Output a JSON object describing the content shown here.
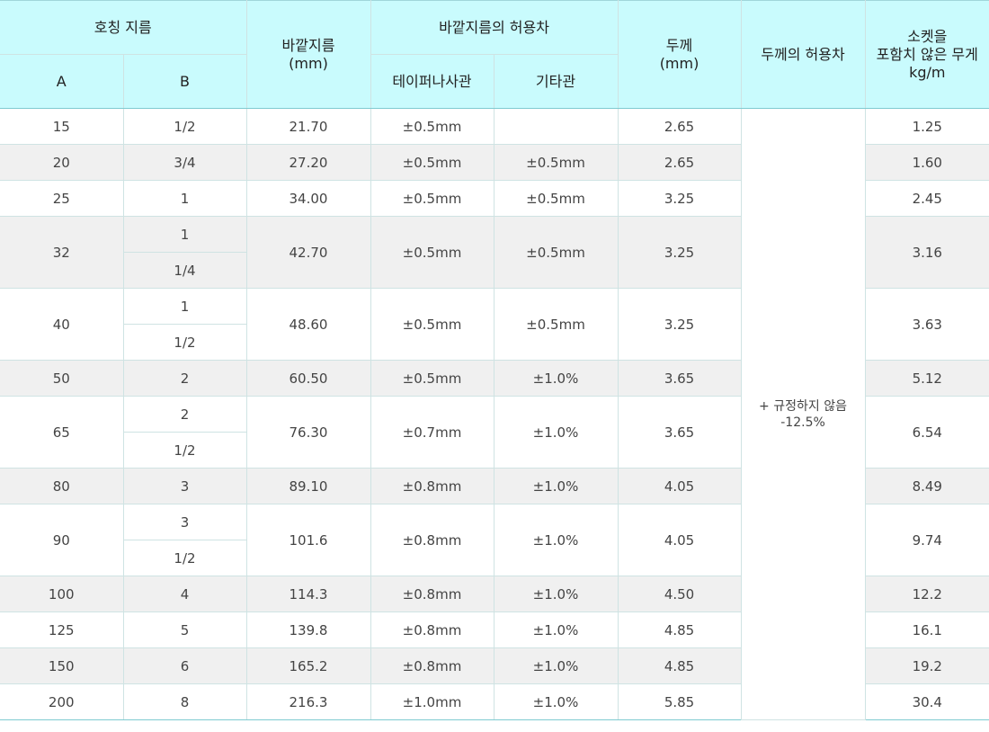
{
  "header": {
    "nominal": "호칭 지름",
    "col_a": "A",
    "col_b": "B",
    "outer_diameter": [
      "바깥지름",
      "(mm)"
    ],
    "outer_tolerance": "바깥지름의 허용차",
    "taper_screw": "테이퍼나사관",
    "other_pipe": "기타관",
    "thickness": [
      "두께",
      "(mm)"
    ],
    "thickness_tolerance": "두께의 허용차",
    "weight": [
      "소켓을",
      "포함치 않은 무게",
      "kg/m"
    ]
  },
  "thickness_tolerance_value": [
    "+ 규정하지 않음",
    "-12.5%"
  ],
  "rows": [
    {
      "a": "15",
      "b": [
        "1/2"
      ],
      "od": "21.70",
      "taper": "±0.5mm",
      "other": "",
      "t": "2.65",
      "w": "1.25"
    },
    {
      "a": "20",
      "b": [
        "3/4"
      ],
      "od": "27.20",
      "taper": "±0.5mm",
      "other": "±0.5mm",
      "t": "2.65",
      "w": "1.60"
    },
    {
      "a": "25",
      "b": [
        "1"
      ],
      "od": "34.00",
      "taper": "±0.5mm",
      "other": "±0.5mm",
      "t": "3.25",
      "w": "2.45"
    },
    {
      "a": "32",
      "b": [
        "1",
        "1/4"
      ],
      "od": "42.70",
      "taper": "±0.5mm",
      "other": "±0.5mm",
      "t": "3.25",
      "w": "3.16"
    },
    {
      "a": "40",
      "b": [
        "1",
        "1/2"
      ],
      "od": "48.60",
      "taper": "±0.5mm",
      "other": "±0.5mm",
      "t": "3.25",
      "w": "3.63"
    },
    {
      "a": "50",
      "b": [
        "2"
      ],
      "od": "60.50",
      "taper": "±0.5mm",
      "other": "±1.0%",
      "t": "3.65",
      "w": "5.12"
    },
    {
      "a": "65",
      "b": [
        "2",
        "1/2"
      ],
      "od": "76.30",
      "taper": "±0.7mm",
      "other": "±1.0%",
      "t": "3.65",
      "w": "6.54"
    },
    {
      "a": "80",
      "b": [
        "3"
      ],
      "od": "89.10",
      "taper": "±0.8mm",
      "other": "±1.0%",
      "t": "4.05",
      "w": "8.49"
    },
    {
      "a": "90",
      "b": [
        "3",
        "1/2"
      ],
      "od": "101.6",
      "taper": "±0.8mm",
      "other": "±1.0%",
      "t": "4.05",
      "w": "9.74"
    },
    {
      "a": "100",
      "b": [
        "4"
      ],
      "od": "114.3",
      "taper": "±0.8mm",
      "other": "±1.0%",
      "t": "4.50",
      "w": "12.2"
    },
    {
      "a": "125",
      "b": [
        "5"
      ],
      "od": "139.8",
      "taper": "±0.8mm",
      "other": "±1.0%",
      "t": "4.85",
      "w": "16.1"
    },
    {
      "a": "150",
      "b": [
        "6"
      ],
      "od": "165.2",
      "taper": "±0.8mm",
      "other": "±1.0%",
      "t": "4.85",
      "w": "19.2"
    },
    {
      "a": "200",
      "b": [
        "8"
      ],
      "od": "216.3",
      "taper": "±1.0mm",
      "other": "±1.0%",
      "t": "5.85",
      "w": "30.4"
    }
  ]
}
